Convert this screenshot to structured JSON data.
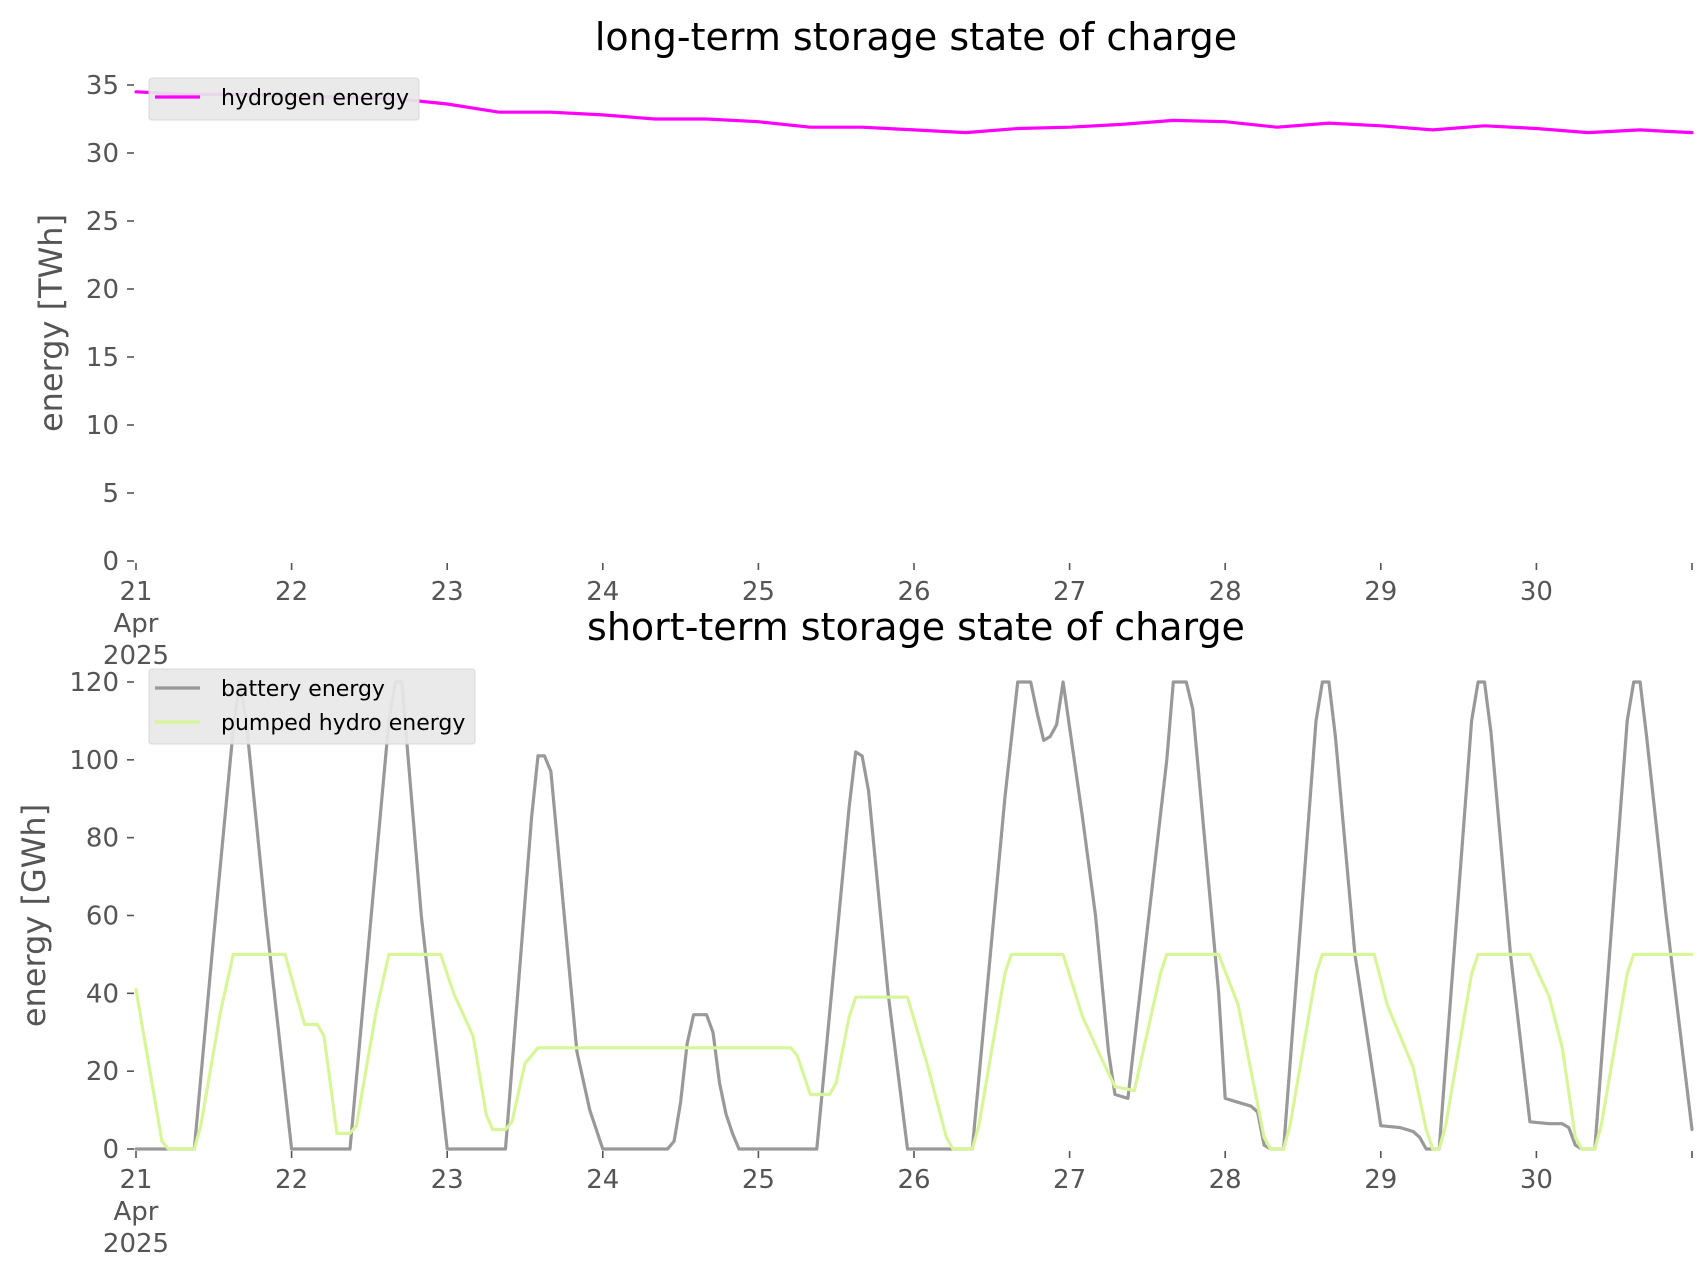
{
  "chart_data": [
    {
      "type": "line",
      "title": "long-term storage state of charge",
      "xlabel": "",
      "ylabel": "energy [TWh]",
      "ylim": [
        0,
        35
      ],
      "xlim": [
        "2025-04-21",
        "2025-05-01"
      ],
      "yticks": [
        0,
        5,
        10,
        15,
        20,
        25,
        30,
        35
      ],
      "x_tick_labels": [
        [
          "21",
          "Apr",
          "2025"
        ],
        [
          "22"
        ],
        [
          "23"
        ],
        [
          "24"
        ],
        [
          "25"
        ],
        [
          "26"
        ],
        [
          "27"
        ],
        [
          "28"
        ],
        [
          "29"
        ],
        [
          "30"
        ],
        [
          ""
        ]
      ],
      "grid": false,
      "legend": "top-left",
      "series": [
        {
          "name": "hydrogen energy",
          "color": "#ff00ff",
          "points": [
            [
              "2025-04-21 00:00",
              34.5
            ],
            [
              "2025-04-21 08:00",
              34.3
            ],
            [
              "2025-04-21 16:00",
              34.3
            ],
            [
              "2025-04-22 00:00",
              34.2
            ],
            [
              "2025-04-22 08:00",
              34.1
            ],
            [
              "2025-04-22 16:00",
              34.0
            ],
            [
              "2025-04-23 00:00",
              33.6
            ],
            [
              "2025-04-23 08:00",
              33.0
            ],
            [
              "2025-04-23 16:00",
              33.0
            ],
            [
              "2025-04-24 00:00",
              32.8
            ],
            [
              "2025-04-24 08:00",
              32.5
            ],
            [
              "2025-04-24 16:00",
              32.5
            ],
            [
              "2025-04-25 00:00",
              32.3
            ],
            [
              "2025-04-25 08:00",
              31.9
            ],
            [
              "2025-04-25 16:00",
              31.9
            ],
            [
              "2025-04-26 00:00",
              31.7
            ],
            [
              "2025-04-26 08:00",
              31.5
            ],
            [
              "2025-04-26 16:00",
              31.8
            ],
            [
              "2025-04-27 00:00",
              31.9
            ],
            [
              "2025-04-27 08:00",
              32.1
            ],
            [
              "2025-04-27 16:00",
              32.4
            ],
            [
              "2025-04-28 00:00",
              32.3
            ],
            [
              "2025-04-28 08:00",
              31.9
            ],
            [
              "2025-04-28 16:00",
              32.2
            ],
            [
              "2025-04-29 00:00",
              32.0
            ],
            [
              "2025-04-29 08:00",
              31.7
            ],
            [
              "2025-04-29 16:00",
              32.0
            ],
            [
              "2025-04-30 00:00",
              31.8
            ],
            [
              "2025-04-30 08:00",
              31.5
            ],
            [
              "2025-04-30 16:00",
              31.7
            ],
            [
              "2025-05-01 00:00",
              31.5
            ]
          ]
        }
      ]
    },
    {
      "type": "line",
      "title": "short-term storage state of charge",
      "xlabel": "",
      "ylabel": "energy [GWh]",
      "ylim": [
        0,
        120
      ],
      "xlim": [
        "2025-04-21",
        "2025-05-01"
      ],
      "yticks": [
        0,
        20,
        40,
        60,
        80,
        100,
        120
      ],
      "x_tick_labels": [
        [
          "21",
          "Apr",
          "2025"
        ],
        [
          "22"
        ],
        [
          "23"
        ],
        [
          "24"
        ],
        [
          "25"
        ],
        [
          "26"
        ],
        [
          "27"
        ],
        [
          "28"
        ],
        [
          "29"
        ],
        [
          "30"
        ],
        [
          ""
        ]
      ],
      "grid": false,
      "legend": "top-left",
      "series": [
        {
          "name": "battery energy",
          "color": "#999999",
          "points": [
            [
              "2025-04-21 00:00",
              0
            ],
            [
              "2025-04-21 09:00",
              0
            ],
            [
              "2025-04-21 12:00",
              55
            ],
            [
              "2025-04-21 15:00",
              108
            ],
            [
              "2025-04-21 16:00",
              120
            ],
            [
              "2025-04-21 17:00",
              110
            ],
            [
              "2025-04-21 20:00",
              60
            ],
            [
              "2025-04-22 00:00",
              0
            ],
            [
              "2025-04-22 09:00",
              0
            ],
            [
              "2025-04-22 15:00",
              110
            ],
            [
              "2025-04-22 16:00",
              120
            ],
            [
              "2025-04-22 17:00",
              120
            ],
            [
              "2025-04-22 20:00",
              60
            ],
            [
              "2025-04-23 00:00",
              0
            ],
            [
              "2025-04-23 09:00",
              0
            ],
            [
              "2025-04-23 13:00",
              85
            ],
            [
              "2025-04-23 14:00",
              101
            ],
            [
              "2025-04-23 15:00",
              101
            ],
            [
              "2025-04-23 16:00",
              97
            ],
            [
              "2025-04-23 20:00",
              25
            ],
            [
              "2025-04-23 22:00",
              10
            ],
            [
              "2025-04-24 00:00",
              0
            ],
            [
              "2025-04-24 10:00",
              0
            ],
            [
              "2025-04-24 11:00",
              2
            ],
            [
              "2025-04-24 12:00",
              12
            ],
            [
              "2025-04-24 13:00",
              27
            ],
            [
              "2025-04-24 14:00",
              34.5
            ],
            [
              "2025-04-24 16:00",
              34.5
            ],
            [
              "2025-04-24 17:00",
              30
            ],
            [
              "2025-04-24 18:00",
              17
            ],
            [
              "2025-04-24 19:00",
              9
            ],
            [
              "2025-04-24 20:00",
              4
            ],
            [
              "2025-04-24 21:00",
              0
            ],
            [
              "2025-04-25 09:00",
              0
            ],
            [
              "2025-04-25 14:00",
              88
            ],
            [
              "2025-04-25 15:00",
              102
            ],
            [
              "2025-04-25 16:00",
              101
            ],
            [
              "2025-04-25 17:00",
              92
            ],
            [
              "2025-04-25 20:00",
              40
            ],
            [
              "2025-04-25 23:00",
              0
            ],
            [
              "2025-04-26 09:00",
              0
            ],
            [
              "2025-04-26 14:00",
              90
            ],
            [
              "2025-04-26 16:00",
              120
            ],
            [
              "2025-04-26 18:00",
              120
            ],
            [
              "2025-04-26 19:00",
              112
            ],
            [
              "2025-04-26 20:00",
              105
            ],
            [
              "2025-04-26 21:00",
              106
            ],
            [
              "2025-04-26 22:00",
              109
            ],
            [
              "2025-04-26 23:00",
              120
            ],
            [
              "2025-04-27 02:00",
              85
            ],
            [
              "2025-04-27 04:00",
              60
            ],
            [
              "2025-04-27 06:00",
              25
            ],
            [
              "2025-04-27 07:00",
              14
            ],
            [
              "2025-04-27 09:00",
              13
            ],
            [
              "2025-04-27 15:00",
              100
            ],
            [
              "2025-04-27 16:00",
              120
            ],
            [
              "2025-04-27 18:00",
              120
            ],
            [
              "2025-04-27 19:00",
              113
            ],
            [
              "2025-04-27 23:00",
              40
            ],
            [
              "2025-04-28 00:00",
              13
            ],
            [
              "2025-04-28 02:00",
              12
            ],
            [
              "2025-04-28 04:00",
              11
            ],
            [
              "2025-04-28 05:00",
              9.5
            ],
            [
              "2025-04-28 06:00",
              1
            ],
            [
              "2025-04-28 07:00",
              0
            ],
            [
              "2025-04-28 09:00",
              0
            ],
            [
              "2025-04-28 14:00",
              110
            ],
            [
              "2025-04-28 15:00",
              120
            ],
            [
              "2025-04-28 16:00",
              120
            ],
            [
              "2025-04-28 17:00",
              106
            ],
            [
              "2025-04-28 20:00",
              50
            ],
            [
              "2025-04-29 00:00",
              6
            ],
            [
              "2025-04-29 03:00",
              5.5
            ],
            [
              "2025-04-29 05:00",
              4.5
            ],
            [
              "2025-04-29 06:00",
              3
            ],
            [
              "2025-04-29 07:00",
              0
            ],
            [
              "2025-04-29 09:00",
              0
            ],
            [
              "2025-04-29 14:00",
              110
            ],
            [
              "2025-04-29 15:00",
              120
            ],
            [
              "2025-04-29 16:00",
              120
            ],
            [
              "2025-04-29 17:00",
              107
            ],
            [
              "2025-04-29 20:00",
              50
            ],
            [
              "2025-04-29 23:00",
              7
            ],
            [
              "2025-04-30 02:00",
              6.5
            ],
            [
              "2025-04-30 04:00",
              6.5
            ],
            [
              "2025-04-30 05:00",
              5.5
            ],
            [
              "2025-04-30 06:00",
              1
            ],
            [
              "2025-04-30 07:00",
              0
            ],
            [
              "2025-04-30 09:00",
              0
            ],
            [
              "2025-04-30 14:00",
              110
            ],
            [
              "2025-04-30 15:00",
              120
            ],
            [
              "2025-04-30 16:00",
              120
            ],
            [
              "2025-04-30 17:00",
              106
            ],
            [
              "2025-04-30 20:00",
              60
            ],
            [
              "2025-05-01 00:00",
              5
            ]
          ]
        },
        {
          "name": "pumped hydro energy",
          "color": "#d9f59a",
          "points": [
            [
              "2025-04-21 00:00",
              41
            ],
            [
              "2025-04-21 04:00",
              2
            ],
            [
              "2025-04-21 05:00",
              0
            ],
            [
              "2025-04-21 09:00",
              0
            ],
            [
              "2025-04-21 10:00",
              6
            ],
            [
              "2025-04-21 13:00",
              35
            ],
            [
              "2025-04-21 15:00",
              50
            ],
            [
              "2025-04-21 23:00",
              50
            ],
            [
              "2025-04-22 02:00",
              32
            ],
            [
              "2025-04-22 04:00",
              32
            ],
            [
              "2025-04-22 05:00",
              29
            ],
            [
              "2025-04-22 07:00",
              4
            ],
            [
              "2025-04-22 09:00",
              4
            ],
            [
              "2025-04-22 10:00",
              6
            ],
            [
              "2025-04-22 13:00",
              35
            ],
            [
              "2025-04-22 15:00",
              50
            ],
            [
              "2025-04-22 23:00",
              50
            ],
            [
              "2025-04-23 01:00",
              40
            ],
            [
              "2025-04-23 04:00",
              29
            ],
            [
              "2025-04-23 06:00",
              9
            ],
            [
              "2025-04-23 07:00",
              5
            ],
            [
              "2025-04-23 09:00",
              5
            ],
            [
              "2025-04-23 10:00",
              7
            ],
            [
              "2025-04-23 12:00",
              22
            ],
            [
              "2025-04-23 14:00",
              26
            ],
            [
              "2025-04-25 05:00",
              26
            ],
            [
              "2025-04-25 06:00",
              24
            ],
            [
              "2025-04-25 08:00",
              14
            ],
            [
              "2025-04-25 11:00",
              14
            ],
            [
              "2025-04-25 12:00",
              17
            ],
            [
              "2025-04-25 14:00",
              34
            ],
            [
              "2025-04-25 15:00",
              39
            ],
            [
              "2025-04-25 23:00",
              39
            ],
            [
              "2025-04-26 02:00",
              22
            ],
            [
              "2025-04-26 05:00",
              3
            ],
            [
              "2025-04-26 06:00",
              0
            ],
            [
              "2025-04-26 09:00",
              0
            ],
            [
              "2025-04-26 10:00",
              6
            ],
            [
              "2025-04-26 14:00",
              45
            ],
            [
              "2025-04-26 15:00",
              50
            ],
            [
              "2025-04-26 23:00",
              50
            ],
            [
              "2025-04-27 02:00",
              34
            ],
            [
              "2025-04-27 05:00",
              23
            ],
            [
              "2025-04-27 07:00",
              16
            ],
            [
              "2025-04-27 10:00",
              15
            ],
            [
              "2025-04-27 14:00",
              45
            ],
            [
              "2025-04-27 15:00",
              50
            ],
            [
              "2025-04-27 23:00",
              50
            ],
            [
              "2025-04-28 02:00",
              37
            ],
            [
              "2025-04-28 04:00",
              20
            ],
            [
              "2025-04-28 06:00",
              3
            ],
            [
              "2025-04-28 07:00",
              0
            ],
            [
              "2025-04-28 09:00",
              0
            ],
            [
              "2025-04-28 10:00",
              6
            ],
            [
              "2025-04-28 14:00",
              45
            ],
            [
              "2025-04-28 15:00",
              50
            ],
            [
              "2025-04-28 23:00",
              50
            ],
            [
              "2025-04-29 01:00",
              37
            ],
            [
              "2025-04-29 05:00",
              21
            ],
            [
              "2025-04-29 07:00",
              5
            ],
            [
              "2025-04-29 08:00",
              0
            ],
            [
              "2025-04-29 09:00",
              0
            ],
            [
              "2025-04-29 10:00",
              6
            ],
            [
              "2025-04-29 14:00",
              45
            ],
            [
              "2025-04-29 15:00",
              50
            ],
            [
              "2025-04-29 23:00",
              50
            ],
            [
              "2025-04-30 02:00",
              39
            ],
            [
              "2025-04-30 04:00",
              26
            ],
            [
              "2025-04-30 06:00",
              3
            ],
            [
              "2025-04-30 07:00",
              0
            ],
            [
              "2025-04-30 09:00",
              0
            ],
            [
              "2025-04-30 10:00",
              6
            ],
            [
              "2025-04-30 14:00",
              45
            ],
            [
              "2025-04-30 15:00",
              50
            ],
            [
              "2025-05-01 00:00",
              50
            ]
          ]
        }
      ]
    }
  ]
}
